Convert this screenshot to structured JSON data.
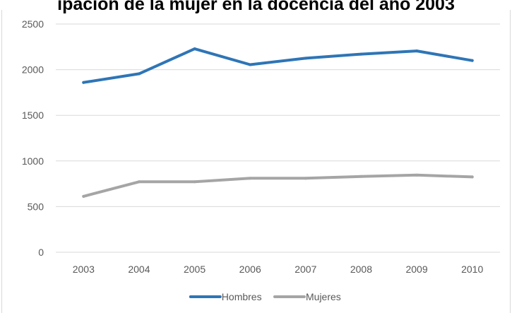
{
  "chart_data": {
    "type": "line",
    "title": "ipación de la mujer en la docencia del año 2003",
    "categories": [
      "2003",
      "2004",
      "2005",
      "2006",
      "2007",
      "2008",
      "2009",
      "2010"
    ],
    "series": [
      {
        "name": "Hombres",
        "color": "#2e75b6",
        "values": [
          1860,
          1955,
          2228,
          2055,
          2125,
          2170,
          2205,
          2100
        ]
      },
      {
        "name": "Mujeres",
        "color": "#a5a5a5",
        "values": [
          612,
          772,
          772,
          810,
          810,
          830,
          845,
          825
        ]
      }
    ],
    "y_ticks": [
      "0",
      "500",
      "1000",
      "1500",
      "2000",
      "2500"
    ],
    "ylim": [
      0,
      2500
    ],
    "grid": true,
    "legend": "bottom-center",
    "gridline_color": "#d9d9d9"
  }
}
